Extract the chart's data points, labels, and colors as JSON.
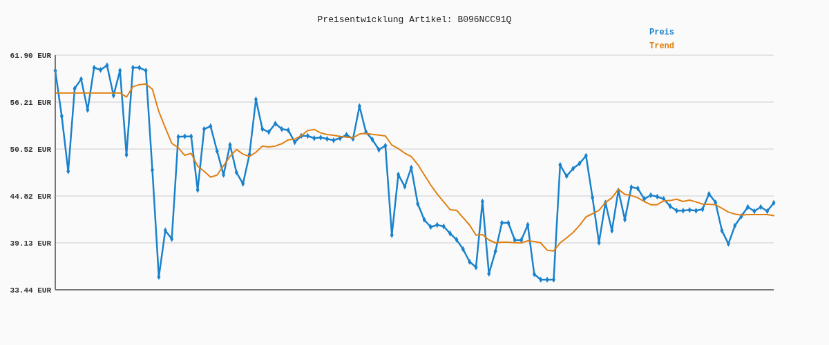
{
  "chart_data": {
    "type": "line",
    "title": "Preisentwicklung Artikel: B096NCC91Q",
    "categories": [
      null,
      null,
      null,
      null,
      null,
      null,
      null,
      null,
      null,
      null,
      null,
      null,
      null,
      null,
      null,
      null,
      null,
      null,
      null,
      null,
      null,
      null,
      null,
      null,
      null,
      null,
      null,
      null,
      null,
      null,
      null,
      null,
      null,
      null,
      null,
      null,
      null,
      null,
      null,
      null,
      null,
      null,
      null,
      null,
      null,
      null,
      null,
      null,
      null,
      null,
      null,
      null,
      null,
      null,
      null,
      null,
      null,
      null,
      null,
      null,
      null,
      null,
      null,
      null,
      null,
      null,
      null,
      null,
      null,
      null,
      null,
      null,
      null,
      null,
      null,
      null,
      null,
      null,
      null,
      null,
      null,
      null,
      null,
      null,
      null,
      null,
      null,
      null,
      null,
      null,
      null,
      null,
      null,
      null,
      null,
      null,
      null,
      null,
      null,
      null,
      null,
      null,
      null,
      null,
      null,
      null,
      null,
      null,
      null,
      null,
      null,
      null
    ],
    "series": [
      {
        "name": "Preis",
        "color": "#1a82cc",
        "marker": "diamond",
        "values": [
          60.03,
          54.51,
          47.81,
          57.86,
          59.0,
          55.26,
          60.39,
          60.12,
          60.67,
          57.02,
          60.03,
          49.82,
          60.39,
          60.39,
          60.03,
          47.98,
          35.0,
          40.64,
          39.61,
          52.0,
          52.05,
          52.05,
          45.55,
          52.94,
          53.28,
          50.26,
          47.39,
          51.02,
          47.67,
          46.3,
          49.85,
          56.54,
          52.94,
          52.58,
          53.61,
          52.94,
          52.8,
          51.35,
          52.11,
          52.11,
          51.83,
          51.91,
          51.75,
          51.58,
          51.83,
          52.25,
          51.75,
          55.71,
          52.58,
          51.66,
          50.43,
          50.93,
          40.08,
          47.42,
          45.97,
          48.26,
          43.88,
          41.95,
          41.06,
          41.31,
          41.14,
          40.28,
          39.52,
          38.38,
          36.85,
          36.18,
          44.15,
          35.39,
          38.1,
          41.56,
          41.56,
          39.47,
          39.47,
          41.31,
          35.34,
          34.67,
          34.67,
          34.67,
          48.59,
          47.23,
          48.15,
          48.76,
          49.7,
          44.63,
          39.16,
          44.01,
          40.61,
          45.49,
          41.95,
          45.89,
          45.74,
          44.46,
          44.91,
          44.74,
          44.46,
          43.57,
          43.04,
          43.04,
          43.12,
          43.04,
          43.21,
          45.07,
          44.04,
          40.61,
          39.02,
          41.22,
          42.37,
          43.48,
          42.98,
          43.48,
          42.98,
          43.99
        ]
      },
      {
        "name": "Trend",
        "color": "#e07f12",
        "marker": "none",
        "values": [
          57.32,
          57.32,
          57.32,
          57.32,
          57.32,
          57.32,
          57.32,
          57.32,
          57.32,
          57.32,
          57.32,
          56.82,
          58.08,
          58.33,
          58.41,
          57.77,
          55.06,
          53.11,
          51.21,
          50.68,
          49.76,
          49.99,
          48.45,
          47.81,
          47.11,
          47.36,
          48.51,
          49.62,
          50.46,
          49.9,
          49.62,
          50.12,
          50.88,
          50.77,
          50.88,
          51.16,
          51.63,
          51.71,
          52.13,
          52.75,
          52.89,
          52.47,
          52.27,
          52.19,
          52.05,
          51.96,
          51.88,
          52.33,
          52.42,
          52.3,
          52.22,
          52.11,
          51.0,
          50.57,
          50.01,
          49.6,
          48.65,
          47.4,
          46.16,
          45.07,
          44.13,
          43.15,
          43.09,
          42.2,
          41.31,
          40.08,
          40.14,
          39.49,
          39.13,
          39.22,
          39.22,
          39.16,
          39.13,
          39.38,
          39.3,
          39.13,
          38.24,
          38.15,
          39.13,
          39.74,
          40.39,
          41.25,
          42.29,
          42.67,
          43.07,
          44.04,
          44.6,
          45.63,
          45.02,
          44.88,
          44.6,
          44.15,
          43.76,
          43.76,
          44.24,
          44.27,
          44.43,
          44.15,
          44.32,
          44.1,
          43.84,
          43.82,
          43.76,
          43.32,
          42.87,
          42.62,
          42.51,
          42.57,
          42.57,
          42.57,
          42.57,
          42.43
        ]
      }
    ],
    "ylim": [
      33.44,
      61.9
    ],
    "yticks": [
      {
        "value": 33.44,
        "label": "33.44 EUR"
      },
      {
        "value": 39.13,
        "label": "39.13 EUR"
      },
      {
        "value": 44.82,
        "label": "44.82 EUR"
      },
      {
        "value": 50.52,
        "label": "50.52 EUR"
      },
      {
        "value": 56.21,
        "label": "56.21 EUR"
      },
      {
        "value": 61.9,
        "label": "61.90 EUR"
      }
    ],
    "grid": "y",
    "legend": "top right",
    "line_style": "solid"
  }
}
